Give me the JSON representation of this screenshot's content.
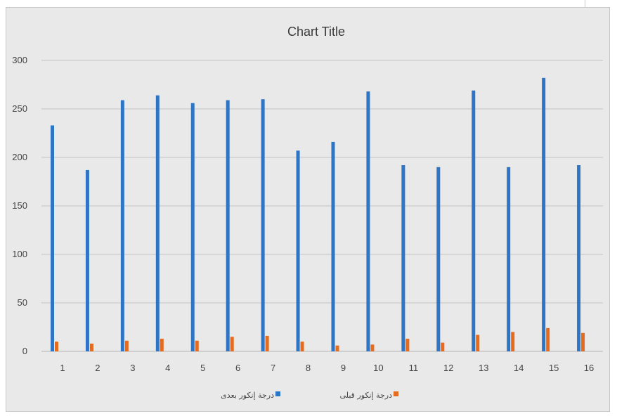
{
  "chart_data": {
    "type": "bar",
    "title": "Chart Title",
    "xlabel": "",
    "ylabel": "",
    "ylim": [
      0,
      300
    ],
    "yticks": [
      0,
      50,
      100,
      150,
      200,
      250,
      300
    ],
    "categories": [
      "1",
      "2",
      "3",
      "4",
      "5",
      "6",
      "7",
      "8",
      "9",
      "10",
      "11",
      "12",
      "13",
      "14",
      "15",
      "16"
    ],
    "series": [
      {
        "name": "درجة إنكور بعدى",
        "color": "#2e75c6",
        "values": [
          233,
          187,
          259,
          264,
          256,
          259,
          260,
          207,
          216,
          268,
          192,
          190,
          269,
          190,
          282,
          192
        ]
      },
      {
        "name": "درجة إنكور قبلى",
        "color": "#e56b1f",
        "values": [
          10,
          8,
          11,
          13,
          11,
          15,
          16,
          10,
          6,
          7,
          13,
          9,
          17,
          20,
          24,
          19
        ]
      }
    ],
    "grid": true,
    "legend_position": "bottom"
  }
}
